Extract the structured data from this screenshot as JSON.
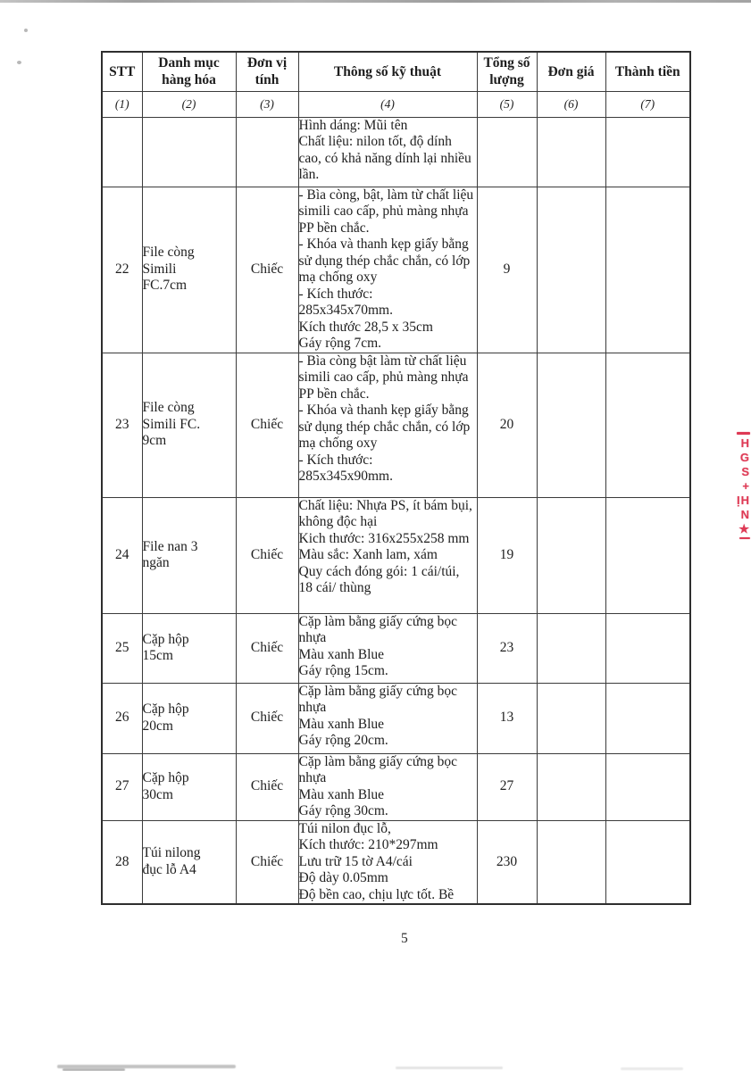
{
  "document": {
    "page_number": "5"
  },
  "table": {
    "columns": [
      {
        "label": "STT",
        "index": "(1)"
      },
      {
        "label": "Danh mục hàng hóa",
        "index": "(2)"
      },
      {
        "label": "Đơn vị tính",
        "index": "(3)"
      },
      {
        "label": "Thông số kỹ thuật",
        "index": "(4)"
      },
      {
        "label": "Tổng số lượng",
        "index": "(5)"
      },
      {
        "label": "Đơn giá",
        "index": "(6)"
      },
      {
        "label": "Thành tiền",
        "index": "(7)"
      }
    ],
    "rows": [
      {
        "stt": "",
        "name": "",
        "unit": "",
        "spec": "Hình dáng: Mũi tên\nChất liệu: nilon tốt, độ dính cao, có khả năng dính lại nhiều lần.",
        "qty": "",
        "unit_price": "",
        "total": ""
      },
      {
        "stt": "22",
        "name": "File còng\nSimili\nFC.7cm",
        "unit": "Chiếc",
        "spec": "- Bìa còng, bật, làm từ chất liệu simili cao cấp, phủ màng nhựa PP bền chắc.\n- Khóa và thanh kẹp giấy bằng sử dụng thép chắc chắn, có lớp mạ chống oxy\n- Kích thước:\n285x345x70mm.\nKích thước 28,5 x 35cm\nGáy rộng 7cm.",
        "qty": "9",
        "unit_price": "",
        "total": ""
      },
      {
        "stt": "23",
        "name": "File còng\nSimili FC.\n9cm",
        "unit": "Chiếc",
        "spec": "- Bìa còng bật làm từ chất liệu simili cao cấp, phủ màng nhựa PP bền chắc.\n- Khóa và thanh kẹp giấy bằng sử dụng thép chắc chắn, có lớp mạ chống oxy\n- Kích thước:\n285x345x90mm.",
        "qty": "20",
        "unit_price": "",
        "total": ""
      },
      {
        "stt": "24",
        "name": "File nan 3\nngăn",
        "unit": "Chiếc",
        "spec": "Chất liệu: Nhựa PS, ít bám bụi, không độc hại\nKich thước: 316x255x258 mm\nMàu sắc: Xanh lam, xám\nQuy cách đóng gói: 1 cái/túi,\n18 cái/ thùng",
        "qty": "19",
        "unit_price": "",
        "total": ""
      },
      {
        "stt": "25",
        "name": "Cặp hộp\n15cm",
        "unit": "Chiếc",
        "spec": "Cặp làm bằng giấy cứng bọc nhựa\nMàu xanh Blue\nGáy rộng 15cm.",
        "qty": "23",
        "unit_price": "",
        "total": ""
      },
      {
        "stt": "26",
        "name": "Cặp hộp\n20cm",
        "unit": "Chiếc",
        "spec": "Cặp làm bằng giấy cứng bọc nhựa\nMàu xanh Blue\nGáy rộng 20cm.",
        "qty": "13",
        "unit_price": "",
        "total": ""
      },
      {
        "stt": "27",
        "name": "Cặp hộp\n30cm",
        "unit": "Chiếc",
        "spec": "Cặp làm bằng giấy cứng bọc nhựa\nMàu xanh Blue\nGáy rộng 30cm.",
        "qty": "27",
        "unit_price": "",
        "total": ""
      },
      {
        "stt": "28",
        "name": "Túi nilong\nđục lỗ A4",
        "unit": "Chiếc",
        "spec": "Túi nilon đục lỗ,\nKích thước: 210*297mm\nLưu trữ 15 tờ A4/cái\nĐộ dày 0.05mm\nĐộ bền cao, chịu lực tốt. Bề",
        "qty": "230",
        "unit_price": "",
        "total": ""
      }
    ]
  },
  "stamp": {
    "color": "#de3a55",
    "fragments": [
      "H",
      "G",
      "S",
      "+",
      "ỊH",
      "N",
      "★"
    ]
  }
}
